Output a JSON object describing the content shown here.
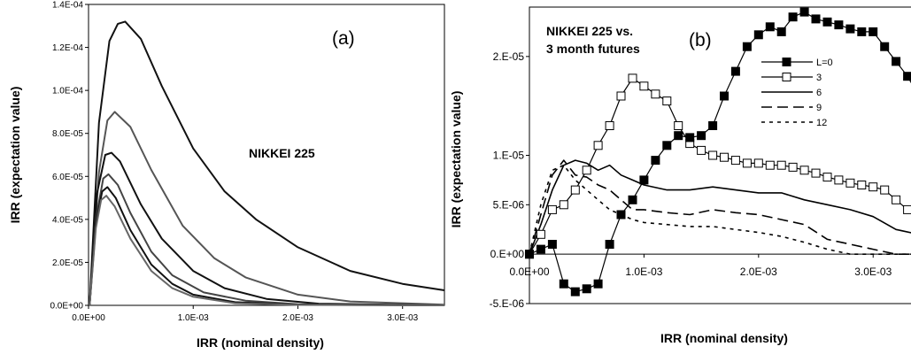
{
  "chart_data": [
    {
      "type": "line",
      "panel_label": "(a)",
      "annotation": "NIKKEI 225",
      "xlabel": "IRR (nominal density)",
      "ylabel": "IRR (expectation value)",
      "xlim": [
        0,
        0.0034
      ],
      "ylim": [
        0,
        0.00014
      ],
      "x_tick_labels": [
        "0.0E+00",
        "1.0E-03",
        "2.0E-03",
        "3.0E-03"
      ],
      "y_tick_labels": [
        "0.0E+00",
        "2.0E-05",
        "4.0E-05",
        "6.0E-05",
        "8.0E-05",
        "1.0E-04",
        "1.2E-04",
        "1.4E-04"
      ],
      "grid": false,
      "series": [
        {
          "color": "#111111",
          "x": [
            1e-05,
            0.0001,
            0.0002,
            0.00028,
            0.00035,
            0.0005,
            0.0007,
            0.001,
            0.0013,
            0.0016,
            0.002,
            0.0025,
            0.003,
            0.0034
          ],
          "values": [
            0.0,
            8.5e-05,
            0.000123,
            0.000131,
            0.000132,
            0.000124,
            0.000102,
            7.3e-05,
            5.3e-05,
            4e-05,
            2.7e-05,
            1.6e-05,
            1e-05,
            7e-06
          ]
        },
        {
          "color": "#555555",
          "x": [
            1e-05,
            0.0001,
            0.00018,
            0.00025,
            0.0004,
            0.0006,
            0.0009,
            0.0012,
            0.0015,
            0.002,
            0.0025,
            0.0034
          ],
          "values": [
            0.0,
            6.2e-05,
            8.6e-05,
            9e-05,
            8.3e-05,
            6.3e-05,
            3.7e-05,
            2.2e-05,
            1.3e-05,
            5e-06,
            1.8e-06,
            3e-07
          ]
        },
        {
          "color": "#111111",
          "x": [
            1e-05,
            8e-05,
            0.00016,
            0.00022,
            0.0003,
            0.0005,
            0.0007,
            0.001,
            0.0013,
            0.0017,
            0.0022,
            0.0034
          ],
          "values": [
            0.0,
            5.2e-05,
            7e-05,
            7.1e-05,
            6.7e-05,
            4.7e-05,
            3.1e-05,
            1.6e-05,
            8e-06,
            3e-06,
            8e-07,
            0.0
          ]
        },
        {
          "color": "#444444",
          "x": [
            1e-05,
            7e-05,
            0.00014,
            0.00019,
            0.00028,
            0.0004,
            0.0006,
            0.0008,
            0.0011,
            0.0015,
            0.002,
            0.0034
          ],
          "values": [
            0.0,
            4e-05,
            5.9e-05,
            6.1e-05,
            5.6e-05,
            4.3e-05,
            2.5e-05,
            1.4e-05,
            6e-06,
            2.2e-06,
            5e-07,
            0.0
          ]
        },
        {
          "color": "#111111",
          "x": [
            1e-05,
            7e-05,
            0.00013,
            0.00018,
            0.00026,
            0.0004,
            0.0006,
            0.0008,
            0.001,
            0.0014,
            0.002,
            0.0034
          ],
          "values": [
            0.0,
            3.8e-05,
            5.3e-05,
            5.5e-05,
            5e-05,
            3.5e-05,
            1.9e-05,
            1e-05,
            5e-06,
            1.5e-06,
            3e-07,
            0.0
          ]
        },
        {
          "color": "#666666",
          "x": [
            1e-05,
            7e-05,
            0.00012,
            0.00017,
            0.00025,
            0.0004,
            0.0006,
            0.0008,
            0.001,
            0.0014,
            0.002,
            0.0034
          ],
          "values": [
            0.0,
            3.6e-05,
            4.9e-05,
            5.1e-05,
            4.6e-05,
            3.1e-05,
            1.6e-05,
            8e-06,
            4e-06,
            1e-06,
            2e-07,
            0.0
          ]
        }
      ]
    },
    {
      "type": "line",
      "panel_label": "(b)",
      "annotation": [
        "NIKKEI 225 vs.",
        "3 month futures"
      ],
      "xlabel": "IRR (nominal density)",
      "ylabel": "IRR (expectation value)",
      "xlim": [
        0,
        0.0034
      ],
      "ylim": [
        -5e-06,
        2.5e-05
      ],
      "x_tick_labels": [
        "0.0E+00",
        "1.0E-03",
        "2.0E-03",
        "3.0E-03"
      ],
      "y_tick_labels": [
        "-5.E-06",
        "0.E+00",
        "5.E-06",
        "1.E-05",
        "2.E-05"
      ],
      "grid": false,
      "legend_position": "top-right",
      "series": [
        {
          "name": "L=0",
          "marker": "filled-square",
          "dash": "solid",
          "x": [
            0.0,
            0.0001,
            0.0002,
            0.0003,
            0.0004,
            0.0005,
            0.0006,
            0.0007,
            0.0008,
            0.0009,
            0.001,
            0.0011,
            0.0012,
            0.0013,
            0.0014,
            0.0015,
            0.0016,
            0.0017,
            0.0018,
            0.0019,
            0.002,
            0.0021,
            0.0022,
            0.0023,
            0.0024,
            0.0025,
            0.0026,
            0.0027,
            0.0028,
            0.0029,
            0.003,
            0.0031,
            0.0032,
            0.0033,
            0.0034
          ],
          "values": [
            0.0,
            5e-07,
            1e-06,
            -3e-06,
            -3.8e-06,
            -3.5e-06,
            -3e-06,
            1e-06,
            4e-06,
            5.5e-06,
            7.5e-06,
            9.5e-06,
            1.1e-05,
            1.2e-05,
            1.18e-05,
            1.2e-05,
            1.3e-05,
            1.6e-05,
            1.85e-05,
            2.1e-05,
            2.22e-05,
            2.3e-05,
            2.25e-05,
            2.4e-05,
            2.45e-05,
            2.38e-05,
            2.35e-05,
            2.32e-05,
            2.28e-05,
            2.25e-05,
            2.25e-05,
            2.1e-05,
            1.95e-05,
            1.8e-05,
            1.6e-05
          ]
        },
        {
          "name": "3",
          "marker": "open-square",
          "dash": "solid",
          "x": [
            0.0,
            0.0001,
            0.0002,
            0.0003,
            0.0004,
            0.0005,
            0.0006,
            0.0007,
            0.0008,
            0.0009,
            0.001,
            0.0011,
            0.0012,
            0.0013,
            0.0014,
            0.0015,
            0.0016,
            0.0017,
            0.0018,
            0.0019,
            0.002,
            0.0021,
            0.0022,
            0.0023,
            0.0024,
            0.0025,
            0.0026,
            0.0027,
            0.0028,
            0.0029,
            0.003,
            0.0031,
            0.0032,
            0.0033,
            0.0034
          ],
          "values": [
            0.0,
            2e-06,
            4.5e-06,
            5e-06,
            6.5e-06,
            8.5e-06,
            1.1e-05,
            1.3e-05,
            1.6e-05,
            1.78e-05,
            1.7e-05,
            1.62e-05,
            1.55e-05,
            1.3e-05,
            1.12e-05,
            1.05e-05,
            1e-05,
            9.8e-06,
            9.5e-06,
            9.2e-06,
            9.2e-06,
            9e-06,
            9e-06,
            8.8e-06,
            8.5e-06,
            8.2e-06,
            7.8e-06,
            7.5e-06,
            7.2e-06,
            7e-06,
            6.8e-06,
            6.5e-06,
            5.5e-06,
            4.5e-06,
            3.5e-06
          ]
        },
        {
          "name": "6",
          "marker": "",
          "dash": "solid",
          "x": [
            0.0,
            0.0001,
            0.0002,
            0.0003,
            0.0004,
            0.0005,
            0.0006,
            0.0007,
            0.0008,
            0.0009,
            0.001,
            0.0012,
            0.0014,
            0.0016,
            0.0018,
            0.002,
            0.0022,
            0.0024,
            0.0026,
            0.0028,
            0.003,
            0.0032,
            0.0034
          ],
          "values": [
            0.0,
            3e-06,
            6.5e-06,
            9e-06,
            9.5e-06,
            9.2e-06,
            8.5e-06,
            9e-06,
            8e-06,
            7.5e-06,
            7e-06,
            6.5e-06,
            6.5e-06,
            6.8e-06,
            6.5e-06,
            6.2e-06,
            6.2e-06,
            5.5e-06,
            5e-06,
            4.5e-06,
            3.8e-06,
            2.5e-06,
            2e-06
          ]
        },
        {
          "name": "9",
          "marker": "",
          "dash": "long-dash",
          "x": [
            0.0,
            0.0001,
            0.0002,
            0.0003,
            0.0004,
            0.0005,
            0.0006,
            0.0007,
            0.0008,
            0.0009,
            0.001,
            0.0012,
            0.0014,
            0.0016,
            0.0018,
            0.002,
            0.0022,
            0.0024,
            0.0026,
            0.0028,
            0.003,
            0.0032,
            0.0034
          ],
          "values": [
            0.0,
            4e-06,
            8e-06,
            9.5e-06,
            8e-06,
            7.8e-06,
            7e-06,
            6.5e-06,
            5.5e-06,
            4.5e-06,
            4.5e-06,
            4.2e-06,
            4e-06,
            4.5e-06,
            4.2e-06,
            4e-06,
            3.5e-06,
            3e-06,
            1.5e-06,
            1e-06,
            5e-07,
            0.0,
            0.0
          ]
        },
        {
          "name": "12",
          "marker": "",
          "dash": "short-dash",
          "x": [
            0.0,
            0.0001,
            0.0002,
            0.0003,
            0.0004,
            0.0005,
            0.0006,
            0.0007,
            0.0008,
            0.0009,
            0.001,
            0.0012,
            0.0014,
            0.0016,
            0.0018,
            0.002,
            0.0022,
            0.0024,
            0.0026,
            0.0028,
            0.003,
            0.0032,
            0.0034
          ],
          "values": [
            0.0,
            5e-06,
            8.5e-06,
            9e-06,
            7.5e-06,
            6.5e-06,
            5.5e-06,
            4.5e-06,
            4e-06,
            3.5e-06,
            3.2e-06,
            3e-06,
            2.8e-06,
            2.8e-06,
            2.5e-06,
            2.2e-06,
            1.8e-06,
            1.2e-06,
            5e-07,
            0.0,
            0.0,
            0.0,
            0.0
          ]
        }
      ]
    }
  ]
}
